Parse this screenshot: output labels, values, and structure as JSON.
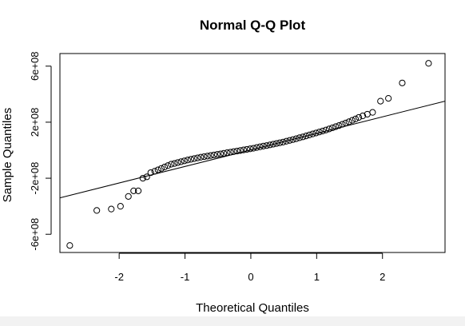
{
  "chart_data": {
    "type": "scatter",
    "title": "Normal Q-Q Plot",
    "xlabel": "Theoretical Quantiles",
    "ylabel": "Sample Quantiles",
    "xlim": [
      -2.9,
      2.95
    ],
    "ylim": [
      -730000000.0,
      690000000.0
    ],
    "x_ticks": [
      -2,
      -1,
      0,
      1,
      2
    ],
    "x_tick_labels": [
      "-2",
      "-1",
      "0",
      "1",
      "2"
    ],
    "y_ticks": [
      -600000000,
      -200000000,
      200000000,
      600000000
    ],
    "y_tick_labels": [
      "-6e+08",
      "-2e+08",
      "2e+08",
      "6e+08"
    ],
    "grid": false,
    "legend": "none",
    "reference_line": {
      "x": [
        -2.9,
        2.95
      ],
      "y": [
        -340000000.0,
        350000000.0
      ]
    },
    "points": {
      "x": [
        -2.75,
        -2.34,
        -2.12,
        -1.98,
        -1.86,
        -1.78,
        -1.71,
        -1.64,
        -1.58,
        -1.52,
        -1.46,
        -1.41,
        -1.36,
        -1.31,
        -1.26,
        -1.21,
        -1.16,
        -1.11,
        -1.06,
        -1.01,
        -0.96,
        -0.91,
        -0.86,
        -0.81,
        -0.76,
        -0.71,
        -0.66,
        -0.61,
        -0.56,
        -0.51,
        -0.46,
        -0.41,
        -0.36,
        -0.31,
        -0.26,
        -0.21,
        -0.16,
        -0.11,
        -0.06,
        -0.01,
        0.04,
        0.09,
        0.14,
        0.19,
        0.24,
        0.29,
        0.34,
        0.39,
        0.44,
        0.49,
        0.54,
        0.59,
        0.64,
        0.69,
        0.74,
        0.79,
        0.84,
        0.89,
        0.94,
        0.99,
        1.04,
        1.09,
        1.14,
        1.19,
        1.24,
        1.29,
        1.34,
        1.39,
        1.44,
        1.49,
        1.54,
        1.59,
        1.64,
        1.7,
        1.77,
        1.85,
        1.97,
        2.09,
        2.3,
        2.7
      ],
      "y": [
        -680000000.0,
        -430000000.0,
        -420000000.0,
        -400000000.0,
        -330000000.0,
        -290000000.0,
        -290000000.0,
        -200000000.0,
        -190000000.0,
        -160000000.0,
        -150000000.0,
        -140000000.0,
        -130000000.0,
        -120000000.0,
        -110000000.0,
        -100000000.0,
        -95000000.0,
        -88000000.0,
        -82000000.0,
        -76000000.0,
        -70000000.0,
        -65000000.0,
        -60000000.0,
        -55000000.0,
        -50000000.0,
        -46000000.0,
        -42000000.0,
        -38000000.0,
        -34000000.0,
        -30000000.0,
        -26000000.0,
        -22000000.0,
        -18000000.0,
        -14000000.0,
        -10000000.0,
        -6000000.0,
        -2000000.0,
        2000000.0,
        6000000.0,
        10000000.0,
        14000000.0,
        19000000.0,
        24000000.0,
        29000000.0,
        33000000.0,
        38000000.0,
        43000000.0,
        48000000.0,
        53000000.0,
        58000000.0,
        64000000.0,
        70000000.0,
        76000000.0,
        82000000.0,
        89000000.0,
        95000000.0,
        102000000.0,
        109000000.0,
        116000000.0,
        123000000.0,
        130000000.0,
        137000000.0,
        144000000.0,
        152000000.0,
        160000000.0,
        168000000.0,
        176000000.0,
        185000000.0,
        194000000.0,
        203000000.0,
        213000000.0,
        223000000.0,
        234000000.0,
        245000000.0,
        257000000.0,
        270000000.0,
        350000000.0,
        370000000.0,
        480000000.0,
        620000000.0
      ]
    }
  }
}
